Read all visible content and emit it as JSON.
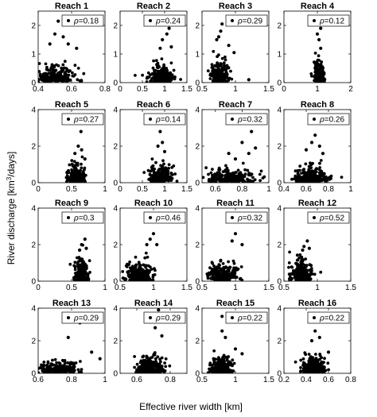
{
  "figure": {
    "xlabel": "Effective river width [km]",
    "ylabel_pre": "River discharge [km",
    "ylabel_sup": "3",
    "ylabel_post": "/days]",
    "legend_symbol": "ρ"
  },
  "chart_data": [
    {
      "type": "scatter",
      "title": "Reach 1",
      "xlim": [
        0.4,
        0.8
      ],
      "ylim": [
        0,
        2.5
      ],
      "xticks": [
        "0.4",
        "0.6",
        "0.8"
      ],
      "yticks": [
        "0",
        "1",
        "2"
      ],
      "xtickvals": [
        0.4,
        0.6,
        0.8
      ],
      "ytickvals": [
        0,
        1,
        2
      ],
      "rho": "=0.18",
      "cluster": {
        "x": 0.5,
        "sx": 0.06,
        "sy": 0.28
      },
      "outliers": [
        [
          0.52,
          2.15
        ],
        [
          0.55,
          1.6
        ],
        [
          0.5,
          1.7
        ],
        [
          0.58,
          1.35
        ],
        [
          0.63,
          1.2
        ],
        [
          0.47,
          1.35
        ]
      ]
    },
    {
      "type": "scatter",
      "title": "Reach 2",
      "xlim": [
        0,
        1.5
      ],
      "ylim": [
        0,
        2.5
      ],
      "xticks": [
        "0",
        "0.5",
        "1",
        "1.5"
      ],
      "yticks": [
        "0",
        "1",
        "2"
      ],
      "xtickvals": [
        0,
        0.5,
        1,
        1.5
      ],
      "ytickvals": [
        0,
        1,
        2
      ],
      "rho": "=0.24",
      "cluster": {
        "x": 0.9,
        "sx": 0.14,
        "sy": 0.28
      },
      "outliers": [
        [
          1.1,
          1.9
        ],
        [
          1.05,
          1.7
        ],
        [
          0.95,
          1.5
        ],
        [
          1.15,
          1.25
        ],
        [
          0.9,
          1.2
        ]
      ]
    },
    {
      "type": "scatter",
      "title": "Reach 3",
      "xlim": [
        0.5,
        1.5
      ],
      "ylim": [
        0,
        2.5
      ],
      "xticks": [
        "0.5",
        "1",
        "1.5"
      ],
      "yticks": [
        "0",
        "1",
        "2"
      ],
      "xtickvals": [
        0.5,
        1,
        1.5
      ],
      "ytickvals": [
        0,
        1,
        2
      ],
      "rho": "=0.29",
      "cluster": {
        "x": 0.75,
        "sx": 0.07,
        "sy": 0.35
      },
      "outliers": [
        [
          0.8,
          2.05
        ],
        [
          0.78,
          1.8
        ],
        [
          0.75,
          1.6
        ],
        [
          0.72,
          1.5
        ],
        [
          0.9,
          1.3
        ],
        [
          0.98,
          1.05
        ],
        [
          1.2,
          0.1
        ]
      ]
    },
    {
      "type": "scatter",
      "title": "Reach 4",
      "xlim": [
        0,
        2
      ],
      "ylim": [
        0,
        2.5
      ],
      "xticks": [
        "0",
        "1",
        "2"
      ],
      "yticks": [
        "0",
        "1",
        "2"
      ],
      "xtickvals": [
        0,
        1,
        2
      ],
      "ytickvals": [
        0,
        1,
        2
      ],
      "rho": "=0.12",
      "cluster": {
        "x": 1.05,
        "sx": 0.07,
        "sy": 0.32
      },
      "outliers": [
        [
          1.05,
          2.1
        ],
        [
          1.1,
          1.9
        ],
        [
          1,
          1.7
        ],
        [
          1.05,
          1.5
        ],
        [
          1.1,
          1.2
        ]
      ]
    },
    {
      "type": "scatter",
      "title": "Reach 5",
      "xlim": [
        0,
        1
      ],
      "ylim": [
        0,
        4
      ],
      "xticks": [
        "0",
        "0.5",
        "1"
      ],
      "yticks": [
        "0",
        "2",
        "4"
      ],
      "xtickvals": [
        0,
        0.5,
        1
      ],
      "ytickvals": [
        0,
        2,
        4
      ],
      "rho": "=0.27",
      "cluster": {
        "x": 0.58,
        "sx": 0.06,
        "sy": 0.45
      },
      "outliers": [
        [
          0.64,
          2.8
        ],
        [
          0.6,
          2
        ],
        [
          0.65,
          1.8
        ],
        [
          0.55,
          1.6
        ],
        [
          0.7,
          1.3
        ]
      ]
    },
    {
      "type": "scatter",
      "title": "Reach 6",
      "xlim": [
        0,
        1.5
      ],
      "ylim": [
        0,
        4
      ],
      "xticks": [
        "0",
        "0.5",
        "1",
        "1.5"
      ],
      "yticks": [
        "0",
        "2",
        "4"
      ],
      "xtickvals": [
        0,
        0.5,
        1,
        1.5
      ],
      "ytickvals": [
        0,
        2,
        4
      ],
      "rho": "=0.14",
      "cluster": {
        "x": 0.9,
        "sx": 0.12,
        "sy": 0.5
      },
      "outliers": [
        [
          0.9,
          2.8
        ],
        [
          0.95,
          2.2
        ],
        [
          0.85,
          2
        ],
        [
          1,
          1.7
        ]
      ]
    },
    {
      "type": "scatter",
      "title": "Reach 7",
      "xlim": [
        0.5,
        1
      ],
      "ylim": [
        0,
        4
      ],
      "xticks": [
        "0.6",
        "0.8",
        "1"
      ],
      "yticks": [
        "0",
        "2",
        "4"
      ],
      "xtickvals": [
        0.6,
        0.8,
        1
      ],
      "ytickvals": [
        0,
        2,
        4
      ],
      "rho": "=0.32",
      "cluster": {
        "x": 0.72,
        "sx": 0.09,
        "sy": 0.4
      },
      "outliers": [
        [
          0.87,
          2.8
        ],
        [
          0.8,
          2.2
        ],
        [
          0.9,
          1.9
        ],
        [
          0.85,
          1.6
        ],
        [
          0.7,
          1.6
        ],
        [
          0.75,
          1.3
        ]
      ]
    },
    {
      "type": "scatter",
      "title": "Reach 8",
      "xlim": [
        0.4,
        1
      ],
      "ylim": [
        0,
        4
      ],
      "xticks": [
        "0.4",
        "0.6",
        "0.8",
        "1"
      ],
      "yticks": [
        "0",
        "2",
        "4"
      ],
      "xtickvals": [
        0.4,
        0.6,
        0.8,
        1
      ],
      "ytickvals": [
        0,
        2,
        4
      ],
      "rho": "=0.26",
      "cluster": {
        "x": 0.65,
        "sx": 0.07,
        "sy": 0.4
      },
      "outliers": [
        [
          0.68,
          2.6
        ],
        [
          0.65,
          2.2
        ],
        [
          0.72,
          2
        ],
        [
          0.6,
          1.8
        ],
        [
          0.75,
          1.6
        ]
      ]
    },
    {
      "type": "scatter",
      "title": "Reach 9",
      "xlim": [
        0,
        1
      ],
      "ylim": [
        0,
        4
      ],
      "xticks": [
        "0",
        "0.5",
        "1"
      ],
      "yticks": [
        "0",
        "2",
        "4"
      ],
      "xtickvals": [
        0,
        0.5,
        1
      ],
      "ytickvals": [
        0,
        2,
        4
      ],
      "rho": "=0.3",
      "cluster": {
        "x": 0.65,
        "sx": 0.05,
        "sy": 0.6
      },
      "outliers": [
        [
          0.7,
          2.3
        ],
        [
          0.65,
          2
        ],
        [
          0.72,
          1.8
        ],
        [
          0.62,
          1.7
        ]
      ]
    },
    {
      "type": "scatter",
      "title": "Reach 10",
      "xlim": [
        0.5,
        1.5
      ],
      "ylim": [
        0,
        4
      ],
      "xticks": [
        "0.5",
        "1",
        "1.5"
      ],
      "yticks": [
        "0",
        "2",
        "4"
      ],
      "xtickvals": [
        0.5,
        1,
        1.5
      ],
      "ytickvals": [
        0,
        2,
        4
      ],
      "rho": "=0.46",
      "cluster": {
        "x": 0.78,
        "sx": 0.1,
        "sy": 0.55
      },
      "outliers": [
        [
          1,
          2.6
        ],
        [
          0.95,
          2.3
        ],
        [
          1.05,
          2
        ],
        [
          0.9,
          2
        ]
      ]
    },
    {
      "type": "scatter",
      "title": "Reach 11",
      "xlim": [
        0.5,
        1.5
      ],
      "ylim": [
        0,
        4
      ],
      "xticks": [
        "0.5",
        "1",
        "1.5"
      ],
      "yticks": [
        "0",
        "2",
        "4"
      ],
      "xtickvals": [
        0.5,
        1,
        1.5
      ],
      "ytickvals": [
        0,
        2,
        4
      ],
      "rho": "=0.32",
      "cluster": {
        "x": 0.82,
        "sx": 0.12,
        "sy": 0.45
      },
      "outliers": [
        [
          1.05,
          3.7
        ],
        [
          1,
          2.6
        ],
        [
          0.95,
          2.2
        ],
        [
          1.1,
          2
        ]
      ]
    },
    {
      "type": "scatter",
      "title": "Reach 12",
      "xlim": [
        0.5,
        1.5
      ],
      "ylim": [
        0,
        4
      ],
      "xticks": [
        "0.5",
        "1",
        "1.5"
      ],
      "yticks": [
        "0",
        "2",
        "4"
      ],
      "xtickvals": [
        0.5,
        1,
        1.5
      ],
      "ytickvals": [
        0,
        2,
        4
      ],
      "rho": "=0.52",
      "cluster": {
        "x": 0.75,
        "sx": 0.07,
        "sy": 0.55
      },
      "outliers": [
        [
          0.85,
          2.2
        ],
        [
          0.8,
          1.9
        ],
        [
          0.88,
          1.8
        ],
        [
          0.78,
          1.7
        ]
      ]
    },
    {
      "type": "scatter",
      "title": "Reach 13",
      "xlim": [
        0.6,
        1
      ],
      "ylim": [
        0,
        4
      ],
      "xticks": [
        "0.6",
        "0.8",
        "1"
      ],
      "yticks": [
        "0",
        "2",
        "4"
      ],
      "xtickvals": [
        0.6,
        0.8,
        1
      ],
      "ytickvals": [
        0,
        2,
        4
      ],
      "rho": "=0.29",
      "cluster": {
        "x": 0.72,
        "sx": 0.07,
        "sy": 0.35
      },
      "outliers": [
        [
          0.85,
          3.1
        ],
        [
          0.78,
          2.2
        ],
        [
          0.92,
          1.3
        ],
        [
          0.97,
          0.9
        ]
      ]
    },
    {
      "type": "scatter",
      "title": "Reach 14",
      "xlim": [
        0.5,
        0.9
      ],
      "ylim": [
        0,
        4
      ],
      "xticks": [
        "0.6",
        "0.8"
      ],
      "yticks": [
        "0",
        "2",
        "4"
      ],
      "xtickvals": [
        0.6,
        0.8
      ],
      "ytickvals": [
        0,
        2,
        4
      ],
      "rho": "=0.29",
      "cluster": {
        "x": 0.68,
        "sx": 0.04,
        "sy": 0.55
      },
      "outliers": [
        [
          0.73,
          3.9
        ],
        [
          0.72,
          3.3
        ],
        [
          0.71,
          2.8
        ],
        [
          0.75,
          2.3
        ]
      ]
    },
    {
      "type": "scatter",
      "title": "Reach 15",
      "xlim": [
        0.5,
        1.5
      ],
      "ylim": [
        0,
        4
      ],
      "xticks": [
        "0.5",
        "1",
        "1.5"
      ],
      "yticks": [
        "0",
        "2",
        "4"
      ],
      "xtickvals": [
        0.5,
        1,
        1.5
      ],
      "ytickvals": [
        0,
        2,
        4
      ],
      "rho": "=0.22",
      "cluster": {
        "x": 0.78,
        "sx": 0.08,
        "sy": 0.5
      },
      "outliers": [
        [
          0.8,
          3.5
        ],
        [
          0.8,
          2.6
        ],
        [
          0.85,
          2.2
        ],
        [
          1,
          1.5
        ],
        [
          1.1,
          1.2
        ]
      ]
    },
    {
      "type": "scatter",
      "title": "Reach 16",
      "xlim": [
        0.2,
        0.8
      ],
      "ylim": [
        0,
        4
      ],
      "xticks": [
        "0.2",
        "0.4",
        "0.6",
        "0.8"
      ],
      "yticks": [
        "0",
        "2",
        "4"
      ],
      "xtickvals": [
        0.2,
        0.4,
        0.6,
        0.8
      ],
      "ytickvals": [
        0,
        2,
        4
      ],
      "rho": "=0.22",
      "cluster": {
        "x": 0.47,
        "sx": 0.05,
        "sy": 0.5
      },
      "outliers": [
        [
          0.5,
          3.2
        ],
        [
          0.48,
          2.6
        ],
        [
          0.52,
          2.2
        ],
        [
          0.45,
          2
        ],
        [
          0.6,
          1.3
        ]
      ]
    }
  ]
}
